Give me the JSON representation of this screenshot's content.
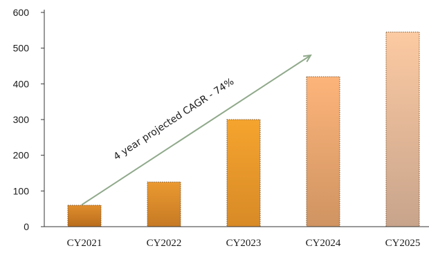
{
  "chart_data": {
    "type": "bar",
    "categories": [
      "CY2021",
      "CY2022",
      "CY2023",
      "CY2024",
      "CY2025"
    ],
    "values": [
      60,
      125,
      300,
      420,
      545
    ],
    "ylim": [
      0,
      600
    ],
    "yticks": [
      0,
      100,
      200,
      300,
      400,
      500,
      600
    ],
    "title": "",
    "xlabel": "",
    "ylabel": "",
    "grid": false,
    "legend": "none",
    "annotation": {
      "text": "4 year projected CAGR - 74%",
      "arrow_from": {
        "category": "CY2021",
        "value": 65
      },
      "arrow_to": {
        "category": "CY2024",
        "value": 480
      }
    },
    "colors": {
      "bars_top": [
        "#e08e2c",
        "#ea9930",
        "#f5a42e",
        "#fdb47a",
        "#fccaa2"
      ],
      "bars_bottom": [
        "#b96d1d",
        "#c77a24",
        "#d88a26",
        "#cf9462",
        "#c8a48c"
      ],
      "arrow": "#8fa98a",
      "axis": "#333333"
    }
  }
}
